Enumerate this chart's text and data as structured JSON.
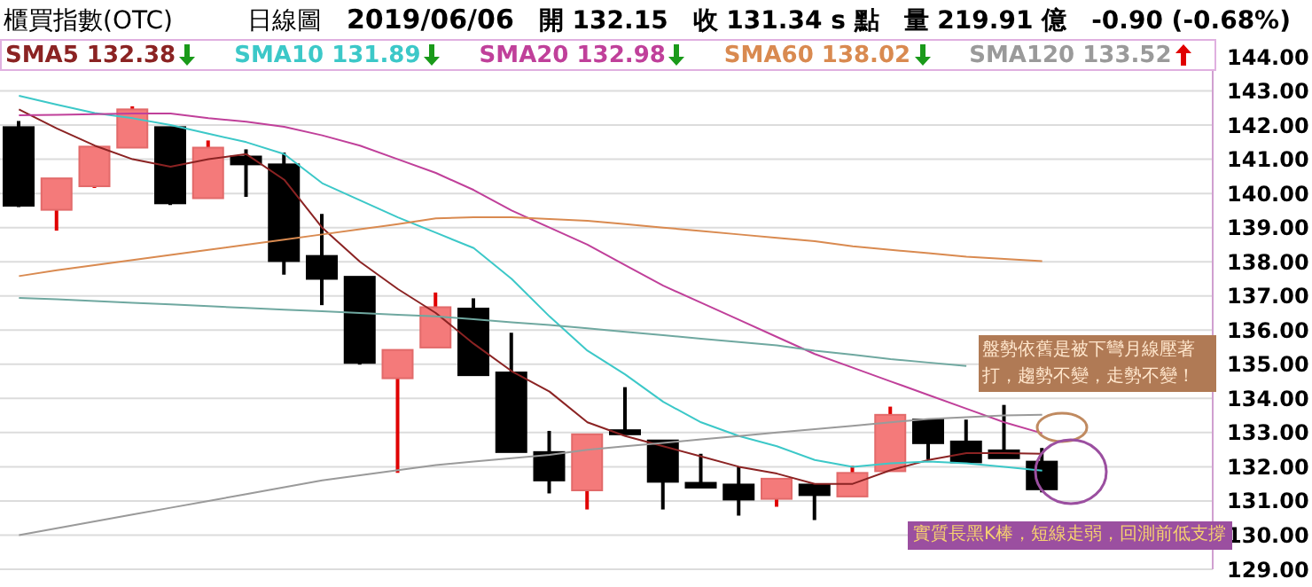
{
  "chart_data": {
    "type": "candlestick",
    "title": "櫃買指數(OTC)",
    "subtitle": "日線圖",
    "annotations": [
      "2019/06/06",
      "開 132.15",
      "收 131.34 s 點",
      "量 219.91 億",
      "-0.90 (-0.68%)",
      "盤勢依舊是被下彎月線壓著打，趨勢不變，走勢不變！",
      "實質長黑K棒，短線走弱，回測前低支撐"
    ],
    "categories": [
      null,
      null,
      null,
      null,
      null,
      null,
      null,
      null,
      null,
      null,
      null,
      null,
      null,
      null,
      null,
      null,
      null,
      null,
      null,
      null,
      null,
      null,
      null,
      null,
      null,
      null,
      null,
      null
    ],
    "ohlc": [
      [
        141.94,
        142.12,
        139.6,
        139.64
      ],
      [
        139.52,
        140.44,
        138.91,
        140.44
      ],
      [
        140.21,
        141.37,
        140.16,
        141.37
      ],
      [
        141.34,
        142.55,
        141.34,
        142.46
      ],
      [
        141.94,
        141.94,
        139.66,
        139.71
      ],
      [
        139.86,
        141.55,
        139.86,
        141.34
      ],
      [
        141.08,
        141.29,
        139.9,
        140.85
      ],
      [
        140.85,
        141.2,
        137.62,
        138.02
      ],
      [
        138.17,
        139.4,
        136.73,
        137.5
      ],
      [
        137.56,
        137.56,
        134.99,
        135.04
      ],
      [
        134.59,
        135.42,
        131.82,
        135.42
      ],
      [
        135.49,
        137.1,
        135.49,
        136.67
      ],
      [
        136.63,
        136.93,
        134.68,
        134.68
      ],
      [
        134.76,
        135.92,
        132.43,
        132.43
      ],
      [
        132.43,
        133.05,
        131.22,
        131.6
      ],
      [
        131.31,
        132.95,
        130.75,
        132.95
      ],
      [
        133.07,
        134.33,
        132.95,
        132.95
      ],
      [
        132.77,
        132.77,
        130.75,
        131.56
      ],
      [
        131.53,
        132.38,
        131.39,
        131.39
      ],
      [
        131.48,
        132.0,
        130.57,
        131.04
      ],
      [
        131.06,
        131.65,
        130.83,
        131.65
      ],
      [
        131.48,
        131.48,
        130.44,
        131.17
      ],
      [
        131.13,
        132.03,
        131.13,
        131.82
      ],
      [
        131.87,
        133.76,
        131.87,
        133.52
      ],
      [
        133.38,
        133.38,
        132.22,
        132.69
      ],
      [
        132.74,
        133.38,
        132.13,
        132.13
      ],
      [
        132.48,
        133.81,
        132.25,
        132.25
      ],
      [
        132.15,
        132.55,
        131.25,
        131.34
      ]
    ],
    "series": [
      {
        "name": "SMA5 132.38",
        "type": "line",
        "color": "#8b2323",
        "values": [
          142.46,
          141.9,
          141.4,
          141.0,
          140.78,
          141.0,
          141.15,
          140.4,
          139.0,
          138.0,
          137.2,
          136.5,
          135.6,
          134.8,
          134.2,
          133.3,
          132.9,
          132.6,
          132.3,
          132.0,
          131.8,
          131.5,
          131.5,
          131.9,
          132.2,
          132.4,
          132.4,
          132.38
        ]
      },
      {
        "name": "SMA10 131.89",
        "type": "line",
        "color": "#3cc8c8",
        "values": [
          142.86,
          142.6,
          142.35,
          142.2,
          142.0,
          141.75,
          141.5,
          141.15,
          140.3,
          139.8,
          139.3,
          138.85,
          138.4,
          137.5,
          136.4,
          135.4,
          134.7,
          133.9,
          133.3,
          132.9,
          132.6,
          132.2,
          132.0,
          132.1,
          132.15,
          132.1,
          132.0,
          131.89
        ]
      },
      {
        "name": "SMA20 132.98",
        "type": "line",
        "color": "#c0409a",
        "values": [
          142.29,
          142.3,
          142.32,
          142.34,
          142.34,
          142.2,
          142.1,
          141.95,
          141.7,
          141.4,
          141.0,
          140.6,
          140.1,
          139.5,
          139.0,
          138.5,
          137.9,
          137.3,
          136.8,
          136.3,
          135.8,
          135.3,
          134.9,
          134.5,
          134.1,
          133.7,
          133.3,
          132.98
        ]
      },
      {
        "name": "SMA60 138.02",
        "type": "line",
        "color": "#d98a50",
        "values": [
          137.58,
          137.75,
          137.9,
          138.05,
          138.2,
          138.35,
          138.5,
          138.65,
          138.8,
          138.95,
          139.1,
          139.27,
          139.3,
          139.3,
          139.25,
          139.2,
          139.1,
          139.0,
          138.9,
          138.8,
          138.7,
          138.6,
          138.45,
          138.35,
          138.25,
          138.15,
          138.08,
          138.02
        ]
      },
      {
        "name": "SMA120 133.52",
        "type": "line",
        "color": "#9a9a9a",
        "values": [
          130.0,
          130.2,
          130.4,
          130.6,
          130.8,
          131.0,
          131.2,
          131.4,
          131.6,
          131.75,
          131.9,
          132.05,
          132.15,
          132.25,
          132.35,
          132.5,
          132.6,
          132.7,
          132.8,
          132.9,
          133.0,
          133.1,
          133.2,
          133.3,
          133.4,
          133.45,
          133.5,
          133.52
        ]
      },
      {
        "type": "line",
        "color": "#6fa8a0",
        "values": [
          136.94,
          136.9,
          136.85,
          136.8,
          136.75,
          136.7,
          136.65,
          136.6,
          136.55,
          136.5,
          136.45,
          136.4,
          136.32,
          136.23,
          136.15,
          136.05,
          135.95,
          135.85,
          135.75,
          135.65,
          135.55,
          135.4,
          135.28,
          135.15,
          135.05,
          134.95,
          null,
          null
        ]
      }
    ],
    "ylim": [
      129,
      144
    ],
    "yticks": [
      {
        "value": 129,
        "label": "129.00"
      },
      {
        "value": 130,
        "label": "130.00"
      },
      {
        "value": 131,
        "label": "131.00"
      },
      {
        "value": 132,
        "label": "132.00"
      },
      {
        "value": 133,
        "label": "133.00"
      },
      {
        "value": 134,
        "label": "134.00"
      },
      {
        "value": 135,
        "label": "135.00"
      },
      {
        "value": 136,
        "label": "136.00"
      },
      {
        "value": 137,
        "label": "137.00"
      },
      {
        "value": 138,
        "label": "138.00"
      },
      {
        "value": 139,
        "label": "139.00"
      },
      {
        "value": 140,
        "label": "140.00"
      },
      {
        "value": 141,
        "label": "141.00"
      },
      {
        "value": 142,
        "label": "142.00"
      },
      {
        "value": 143,
        "label": "143.00"
      },
      {
        "value": 144,
        "label": "144.00"
      }
    ],
    "grid": "y",
    "legend": "top",
    "tick_labels": "y",
    "marker": "none",
    "line_style": "solid"
  }
}
